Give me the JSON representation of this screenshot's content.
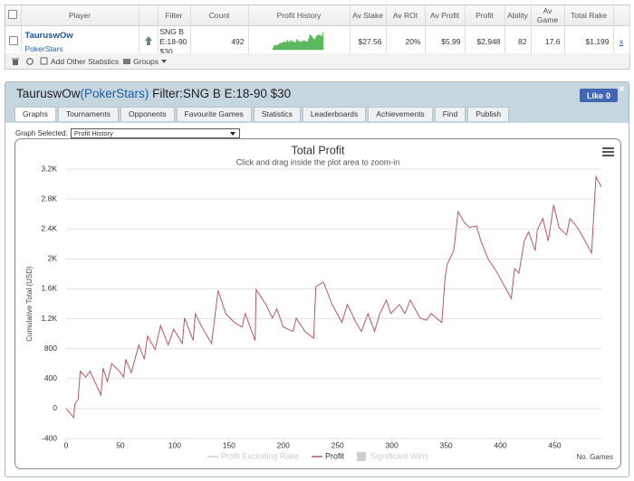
{
  "stats_table": {
    "headers": [
      "Player",
      "Filter",
      "Count",
      "Profit History",
      "Av Stake",
      "Av ROI",
      "Av Profit",
      "Profit",
      "Ability",
      "Av Game",
      "Total Rake"
    ],
    "row": {
      "player": "TauruswOw",
      "site": "PokerStars",
      "filter": "SNG B E:18-90 $30",
      "count": 492,
      "av_stake": "$27.56",
      "av_roi": "20%",
      "av_profit": "$5.99",
      "profit": "$2,948",
      "ability": 82,
      "av_game": 17.6,
      "total_rake": "$1,199",
      "remove": "x"
    },
    "toolbar": {
      "add": "Add Other Statistics",
      "groups": "Groups"
    }
  },
  "panel": {
    "title_parts": [
      "TauruswOw",
      "(",
      "PokerStars",
      ")",
      "Filter:SNG B E:18-90 $30"
    ],
    "like": "Like",
    "like_count": 0,
    "close": "×",
    "tabs": [
      "Graphs",
      "Tournaments",
      "Opponents",
      "Favourite Games",
      "Statistics",
      "Leaderboards",
      "Achievements",
      "Find",
      "Publish"
    ],
    "graph_selected_label": "Graph Selected:",
    "graph_selected": "Profit History"
  },
  "chart_data": {
    "type": "line",
    "title": "Total Profit",
    "subtitle": "Click and drag inside the plot area to zoom-in",
    "x_label": "No. Games",
    "y_label": "Cumulative Total (USD)",
    "x": [
      0,
      5,
      7,
      8,
      11,
      13,
      18,
      22,
      32,
      34,
      38,
      42,
      49,
      53,
      55,
      60,
      67,
      72,
      75,
      82,
      87,
      94,
      99,
      107,
      109,
      117,
      119,
      125,
      134,
      140,
      147,
      155,
      162,
      165,
      174,
      175,
      184,
      190,
      194,
      200,
      209,
      212,
      220,
      228,
      230,
      237,
      245,
      254,
      259,
      267,
      272,
      278,
      284,
      289,
      295,
      299,
      307,
      312,
      317,
      326,
      332,
      336,
      346,
      349,
      351,
      357,
      361,
      367,
      372,
      378,
      382,
      389,
      396,
      404,
      410,
      413,
      417,
      422,
      426,
      432,
      434,
      439,
      444,
      449,
      454,
      461,
      464,
      471,
      478,
      484,
      486,
      488,
      493
    ],
    "series": [
      {
        "name": "Profit",
        "color": "#b65a62",
        "values": [
          0,
          -85,
          -120,
          60,
          120,
          500,
          420,
          500,
          180,
          540,
          360,
          600,
          500,
          420,
          660,
          480,
          850,
          660,
          970,
          790,
          1110,
          850,
          1060,
          870,
          1210,
          910,
          1270,
          1090,
          870,
          1580,
          1270,
          1150,
          1090,
          1270,
          910,
          1590,
          1390,
          1210,
          1330,
          1090,
          1030,
          1210,
          1030,
          940,
          1630,
          1690,
          1390,
          1150,
          1390,
          1150,
          1030,
          1270,
          1030,
          1270,
          1450,
          1270,
          1390,
          1270,
          1450,
          1210,
          1180,
          1270,
          1150,
          1750,
          1930,
          2110,
          2630,
          2480,
          2420,
          2440,
          2240,
          1990,
          1840,
          1630,
          1470,
          1870,
          1810,
          2240,
          2360,
          2110,
          2390,
          2540,
          2240,
          2720,
          2420,
          2320,
          2540,
          2420,
          2240,
          2080,
          2600,
          3100,
          2960
        ]
      }
    ],
    "legend_extra": [
      {
        "name": "Profit Excluding Rake",
        "color": "#d0d0d0",
        "symbol": "line"
      },
      {
        "name": "Significant Wins",
        "color": "#cfcfcf",
        "symbol": "box"
      }
    ],
    "xlim": [
      0,
      493
    ],
    "ylim": [
      -400,
      3200
    ],
    "xticks": [
      0,
      50,
      100,
      150,
      200,
      250,
      300,
      350,
      400,
      450
    ],
    "yticks": [
      -400,
      0,
      400,
      800,
      {
        "value": 1200,
        "label": "1.2K"
      },
      {
        "value": 1600,
        "label": "1.6K"
      },
      {
        "value": 2000,
        "label": "2K"
      },
      {
        "value": 2400,
        "label": "2.4K"
      },
      {
        "value": 2800,
        "label": "2.8K"
      },
      {
        "value": 3200,
        "label": "3.2K"
      }
    ],
    "grid": true,
    "sparkline_color": "#5cb85c"
  }
}
